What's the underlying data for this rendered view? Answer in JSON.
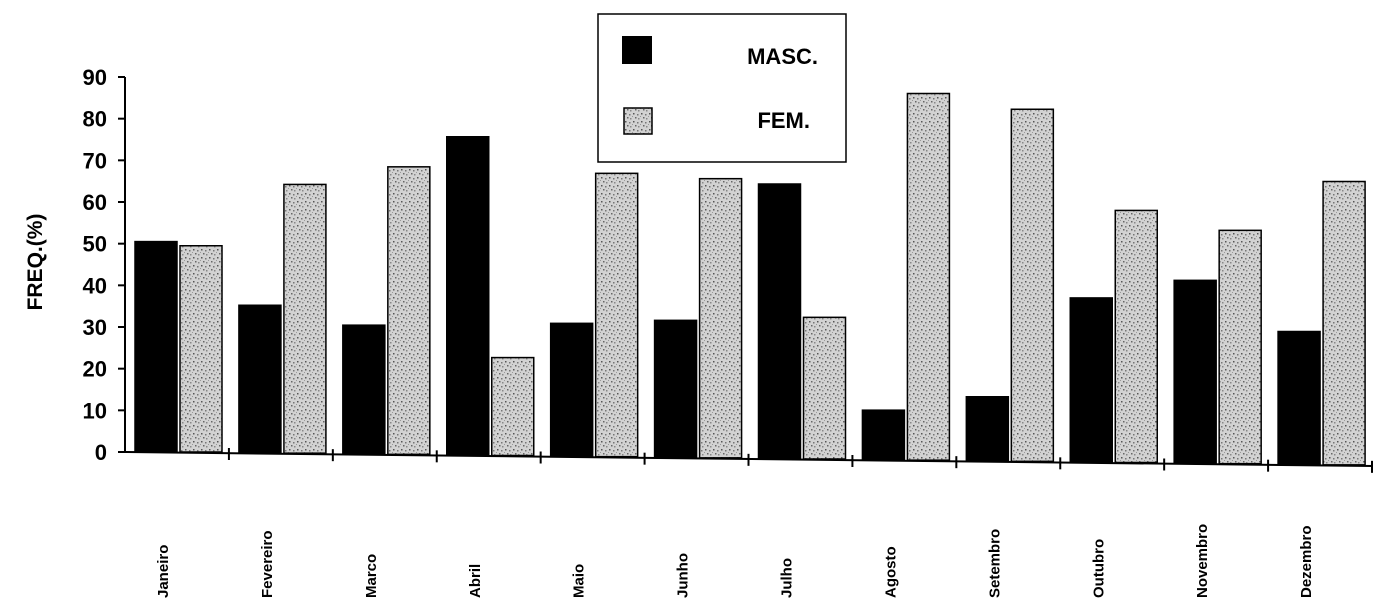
{
  "chart_data": {
    "type": "bar",
    "ylabel": "FREQ.(%)",
    "xlabel": "",
    "ylim": [
      0,
      90
    ],
    "yticks": [
      0,
      10,
      20,
      30,
      40,
      50,
      60,
      70,
      80,
      90
    ],
    "categories": [
      "Janeiro",
      "Fevereiro",
      "Marco",
      "Abril",
      "Maio",
      "Junho",
      "Julho",
      "Agosto",
      "Setembro",
      "Outubro",
      "Novembro",
      "Dezembro"
    ],
    "series": [
      {
        "name": "MASC.",
        "values": [
          50.5,
          35.5,
          31,
          76.5,
          32,
          33,
          66,
          12,
          15.5,
          39.5,
          44,
          32
        ],
        "color": "#000000"
      },
      {
        "name": "FEM.",
        "values": [
          49.5,
          64.5,
          69,
          23.5,
          68,
          67,
          34,
          88,
          84.5,
          60.5,
          56,
          68
        ],
        "color": "#c8c8c8",
        "pattern": "speckled"
      }
    ],
    "legend_position": "top-center",
    "grid": false
  }
}
